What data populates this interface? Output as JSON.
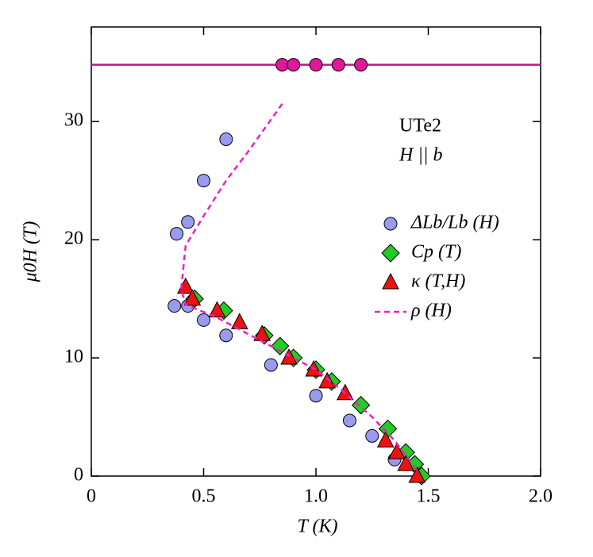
{
  "chart_data": {
    "type": "scatter",
    "x_label": "T (K)",
    "y_label": "μ0H (T)",
    "annotations": [
      "UTe2",
      "H || b"
    ],
    "xlim": [
      0,
      2
    ],
    "ylim": [
      0,
      38
    ],
    "xticks": [
      0,
      0.5,
      {
        "value": 1,
        "label": "1.0"
      },
      1.5,
      {
        "value": 2,
        "label": "2.0"
      }
    ],
    "yticks": [
      0,
      10,
      20,
      30
    ],
    "hline": {
      "value": 34.8,
      "color": "#c0148c"
    },
    "series": [
      {
        "name": "ΔLb/Lb (H)",
        "color": "#9a9af0",
        "marker": "circle",
        "x": [
          0.38,
          0.43,
          0.5,
          0.6,
          0.37,
          0.43,
          0.5,
          0.6,
          0.8,
          1.0,
          1.15,
          1.25,
          1.35
        ],
        "values": [
          20.5,
          21.5,
          25,
          28.5,
          14.4,
          14.4,
          13.2,
          11.9,
          9.4,
          6.8,
          4.7,
          3.4,
          1.4
        ]
      },
      {
        "color": "#e0189a",
        "marker": "circle",
        "x": [
          0.85,
          0.9,
          1.0,
          1.1,
          1.2
        ],
        "values": [
          34.8,
          34.8,
          34.8,
          34.8,
          34.8
        ]
      },
      {
        "name": "Cp (T)",
        "color": "#22cc22",
        "marker": "diamond",
        "x": [
          0.46,
          0.59,
          0.77,
          0.84,
          0.9,
          1.0,
          1.07,
          1.2,
          1.32,
          1.4,
          1.44,
          1.47
        ],
        "values": [
          15,
          14,
          11.9,
          11,
          10,
          9,
          8,
          6,
          4,
          2,
          1,
          0
        ]
      },
      {
        "name": "κ (T,H)",
        "color": "#ee1111",
        "marker": "triangle",
        "x": [
          0.42,
          0.45,
          0.56,
          0.66,
          0.76,
          0.88,
          0.99,
          1.05,
          1.13,
          1.31,
          1.36,
          1.4,
          1.45
        ],
        "values": [
          16,
          15,
          14,
          13,
          12,
          10,
          9,
          8,
          7,
          3,
          2,
          1,
          0
        ]
      },
      {
        "name": "ρ (H)",
        "color": "#f020c0",
        "marker": "dashed-line",
        "x": [
          0.85,
          0.7,
          0.6,
          0.5,
          0.42,
          0.4,
          0.42,
          0.55,
          0.65,
          0.75,
          0.85,
          1.0,
          1.1,
          1.25,
          1.35,
          1.45
        ],
        "values": [
          31.5,
          27.5,
          25,
          22,
          19.5,
          15.8,
          14.5,
          13.5,
          12.5,
          11.5,
          10.5,
          9,
          7.5,
          5,
          3,
          0.5
        ]
      }
    ]
  }
}
